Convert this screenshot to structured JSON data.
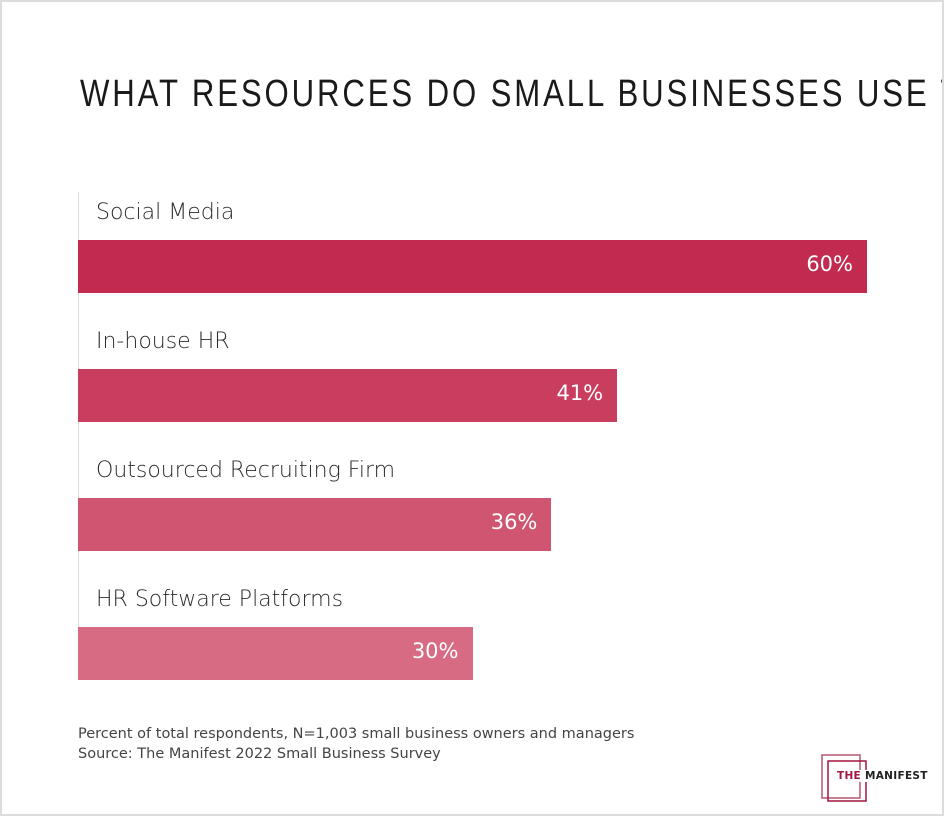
{
  "chart_data": {
    "type": "bar",
    "orientation": "horizontal",
    "title": "WHAT RESOURCES DO SMALL BUSINESSES USE TO FIND NEW EMPLOYEES?",
    "categories": [
      "Social Media",
      "In-house HR",
      "Outsourced Recruiting Firm",
      "HR Software Platforms"
    ],
    "values": [
      60,
      41,
      36,
      30
    ],
    "value_labels": [
      "60%",
      "41%",
      "36%",
      "30%"
    ],
    "unit": "%",
    "xlim": [
      0,
      60
    ],
    "grid": false,
    "colors": [
      "#c22a4f",
      "#c93d5e",
      "#d05571",
      "#d76b84"
    ]
  },
  "notes": {
    "line1": "Percent of total respondents, N=1,003 small business owners and managers",
    "line2": "Source: The Manifest 2022 Small Business Survey"
  },
  "logo": {
    "part1": "THE",
    "part2": "MANIFEST",
    "color": "#a3163f"
  }
}
